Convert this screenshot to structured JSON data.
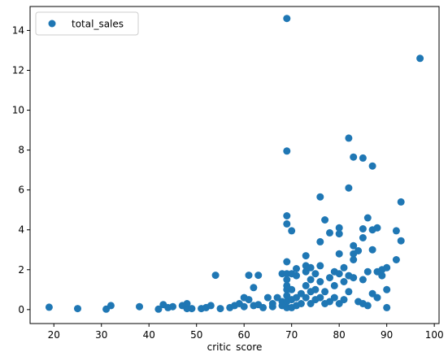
{
  "chart_data": {
    "type": "scatter",
    "xlabel": "critic_score",
    "ylabel": "",
    "xlim": [
      15,
      101
    ],
    "ylim": [
      -0.7,
      15.2
    ],
    "xticks": [
      20,
      30,
      40,
      50,
      60,
      70,
      80,
      90,
      100
    ],
    "yticks": [
      0,
      2,
      4,
      6,
      8,
      10,
      12,
      14
    ],
    "grid": false,
    "legend_position": "top-left",
    "marker_color": "#1f77b4",
    "series": [
      {
        "name": "total_sales",
        "points": [
          [
            19,
            0.12
          ],
          [
            25,
            0.05
          ],
          [
            31,
            0.02
          ],
          [
            32,
            0.2
          ],
          [
            38,
            0.15
          ],
          [
            42,
            0.02
          ],
          [
            43,
            0.25
          ],
          [
            44,
            0.1
          ],
          [
            45,
            0.15
          ],
          [
            47,
            0.2
          ],
          [
            48,
            0.05
          ],
          [
            48,
            0.3
          ],
          [
            49,
            0.05
          ],
          [
            51,
            0.05
          ],
          [
            52,
            0.1
          ],
          [
            53,
            0.2
          ],
          [
            54,
            1.72
          ],
          [
            55,
            0.05
          ],
          [
            57,
            0.1
          ],
          [
            58,
            0.2
          ],
          [
            59,
            0.3
          ],
          [
            60,
            0.6
          ],
          [
            60,
            0.15
          ],
          [
            61,
            1.72
          ],
          [
            61,
            0.5
          ],
          [
            62,
            0.2
          ],
          [
            62,
            1.1
          ],
          [
            63,
            1.72
          ],
          [
            63,
            0.25
          ],
          [
            64,
            0.1
          ],
          [
            65,
            0.6
          ],
          [
            66,
            0.15
          ],
          [
            66,
            0.3
          ],
          [
            67,
            0.6
          ],
          [
            68,
            1.8
          ],
          [
            68,
            0.4
          ],
          [
            68,
            0.2
          ],
          [
            69,
            14.6
          ],
          [
            69,
            7.95
          ],
          [
            69,
            4.7
          ],
          [
            69,
            4.3
          ],
          [
            69,
            2.4
          ],
          [
            69,
            1.8
          ],
          [
            69,
            1.5
          ],
          [
            69,
            1.2
          ],
          [
            69,
            1.0
          ],
          [
            69,
            0.7
          ],
          [
            69,
            0.4
          ],
          [
            69,
            0.1
          ],
          [
            70,
            3.95
          ],
          [
            70,
            1.8
          ],
          [
            70,
            1.0
          ],
          [
            70,
            0.5
          ],
          [
            70,
            0.1
          ],
          [
            71,
            2.05
          ],
          [
            71,
            1.7
          ],
          [
            71,
            0.6
          ],
          [
            71,
            0.2
          ],
          [
            72,
            0.8
          ],
          [
            72,
            0.3
          ],
          [
            73,
            2.7
          ],
          [
            73,
            2.2
          ],
          [
            73,
            1.9
          ],
          [
            73,
            1.2
          ],
          [
            73,
            0.6
          ],
          [
            74,
            2.1
          ],
          [
            74,
            1.5
          ],
          [
            74,
            0.9
          ],
          [
            74,
            0.3
          ],
          [
            75,
            1.8
          ],
          [
            75,
            1.0
          ],
          [
            75,
            0.5
          ],
          [
            76,
            5.65
          ],
          [
            76,
            3.4
          ],
          [
            76,
            2.2
          ],
          [
            76,
            1.4
          ],
          [
            76,
            0.6
          ],
          [
            77,
            4.5
          ],
          [
            77,
            0.9
          ],
          [
            77,
            0.3
          ],
          [
            78,
            3.85
          ],
          [
            78,
            1.6
          ],
          [
            78,
            0.4
          ],
          [
            79,
            1.9
          ],
          [
            79,
            1.2
          ],
          [
            79,
            0.6
          ],
          [
            80,
            4.1
          ],
          [
            80,
            3.8
          ],
          [
            80,
            2.8
          ],
          [
            80,
            1.8
          ],
          [
            80,
            0.3
          ],
          [
            81,
            2.1
          ],
          [
            81,
            1.4
          ],
          [
            81,
            0.5
          ],
          [
            82,
            8.6
          ],
          [
            82,
            6.1
          ],
          [
            82,
            1.7
          ],
          [
            82,
            0.9
          ],
          [
            83,
            7.65
          ],
          [
            83,
            3.2
          ],
          [
            83,
            2.8
          ],
          [
            83,
            2.5
          ],
          [
            83,
            1.6
          ],
          [
            84,
            2.95
          ],
          [
            84,
            0.4
          ],
          [
            85,
            7.6
          ],
          [
            85,
            4.05
          ],
          [
            85,
            3.6
          ],
          [
            85,
            1.5
          ],
          [
            85,
            0.3
          ],
          [
            86,
            4.6
          ],
          [
            86,
            1.9
          ],
          [
            86,
            0.2
          ],
          [
            87,
            7.2
          ],
          [
            87,
            4.0
          ],
          [
            87,
            3.0
          ],
          [
            87,
            0.8
          ],
          [
            88,
            4.1
          ],
          [
            88,
            1.9
          ],
          [
            88,
            0.6
          ],
          [
            89,
            1.7
          ],
          [
            89,
            2.0
          ],
          [
            90,
            2.1
          ],
          [
            90,
            1.0
          ],
          [
            90,
            0.1
          ],
          [
            92,
            3.95
          ],
          [
            92,
            2.5
          ],
          [
            93,
            5.4
          ],
          [
            93,
            3.45
          ],
          [
            97,
            12.6
          ]
        ]
      }
    ]
  }
}
